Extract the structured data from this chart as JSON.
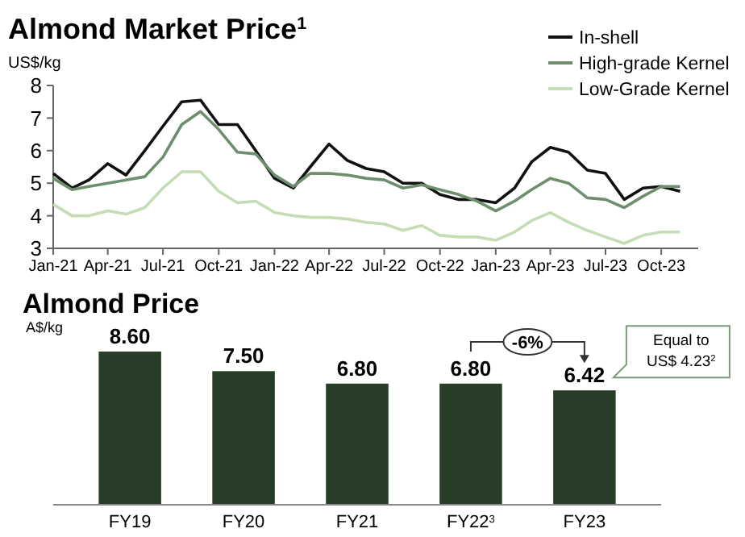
{
  "chart_data": [
    {
      "type": "line",
      "title": "Almond Market Price$^{1}$",
      "ylabel": "US$/kg",
      "x": [
        "2021-01",
        "2021-02",
        "2021-03",
        "2021-04",
        "2021-05",
        "2021-06",
        "2021-07",
        "2021-08",
        "2021-09",
        "2021-10",
        "2021-11",
        "2021-12",
        "2022-01",
        "2022-02",
        "2022-03",
        "2022-04",
        "2022-05",
        "2022-06",
        "2022-07",
        "2022-08",
        "2022-09",
        "2022-10",
        "2022-11",
        "2022-12",
        "2023-01",
        "2023-02",
        "2023-03",
        "2023-04",
        "2023-05",
        "2023-06",
        "2023-07",
        "2023-08",
        "2023-09",
        "2023-10",
        "2023-11"
      ],
      "series": [
        {
          "name": "In-shell",
          "color": "#111111",
          "values": [
            5.3,
            4.85,
            5.1,
            5.6,
            5.25,
            6.0,
            6.75,
            7.5,
            7.55,
            6.8,
            6.8,
            6.0,
            5.15,
            4.85,
            5.5,
            6.2,
            5.7,
            5.45,
            5.35,
            5.0,
            5.0,
            4.65,
            4.5,
            4.5,
            4.4,
            4.85,
            5.65,
            6.1,
            5.95,
            5.4,
            5.3,
            4.5,
            4.85,
            4.9,
            4.75
          ]
        },
        {
          "name": "High-grade Kernel",
          "color": "#6e8f6e",
          "values": [
            5.15,
            4.8,
            4.9,
            5.0,
            5.1,
            5.2,
            5.8,
            6.8,
            7.2,
            6.65,
            5.95,
            5.9,
            5.25,
            4.9,
            5.3,
            5.3,
            5.25,
            5.15,
            5.1,
            4.85,
            4.95,
            4.8,
            4.65,
            4.45,
            4.15,
            4.45,
            4.8,
            5.15,
            5.0,
            4.55,
            4.5,
            4.25,
            4.6,
            4.9,
            4.9
          ]
        },
        {
          "name": "Low-Grade Kernel",
          "color": "#c5dcb5",
          "values": [
            4.35,
            4.0,
            4.0,
            4.15,
            4.05,
            4.25,
            4.85,
            5.35,
            5.35,
            4.75,
            4.4,
            4.45,
            4.1,
            4.0,
            3.95,
            3.95,
            3.9,
            3.8,
            3.75,
            3.55,
            3.7,
            3.4,
            3.35,
            3.35,
            3.25,
            3.5,
            3.85,
            4.1,
            3.8,
            3.55,
            3.35,
            3.15,
            3.4,
            3.5,
            3.5
          ]
        }
      ],
      "xlim": [
        "2021-01",
        "2023-12"
      ],
      "xticks": [
        {
          "value": "2021-01",
          "label": "Jan-21"
        },
        {
          "value": "2021-04",
          "label": "Apr-21"
        },
        {
          "value": "2021-07",
          "label": "Jul-21"
        },
        {
          "value": "2021-10",
          "label": "Oct-21"
        },
        {
          "value": "2022-01",
          "label": "Jan-22"
        },
        {
          "value": "2022-04",
          "label": "Apr-22"
        },
        {
          "value": "2022-07",
          "label": "Jul-22"
        },
        {
          "value": "2022-10",
          "label": "Oct-22"
        },
        {
          "value": "2023-01",
          "label": "Jan-23"
        },
        {
          "value": "2023-04",
          "label": "Apr-23"
        },
        {
          "value": "2023-07",
          "label": "Jul-23"
        },
        {
          "value": "2023-10",
          "label": "Oct-23"
        }
      ],
      "ylim": [
        3,
        8
      ],
      "yticks": [
        3,
        4,
        5,
        6,
        7,
        8
      ],
      "grid": false,
      "legend": "top right",
      "marker": "none",
      "line_style": "solid"
    },
    {
      "type": "bar",
      "title": "Almond Price",
      "ylabel": "A$/kg",
      "categories": [
        "FY19",
        "FY20",
        "FY21",
        "FY22$^{3}$",
        "FY23"
      ],
      "values": [
        8.6,
        7.5,
        6.8,
        6.8,
        6.42
      ],
      "color": "#283d27",
      "value_labels": [
        "8.60",
        "7.50",
        "6.80",
        "6.80",
        "6.42"
      ],
      "tick_labels": "x",
      "annotations": [
        "-6%",
        "Equal to US$ 4.23$^{2}$"
      ]
    }
  ]
}
